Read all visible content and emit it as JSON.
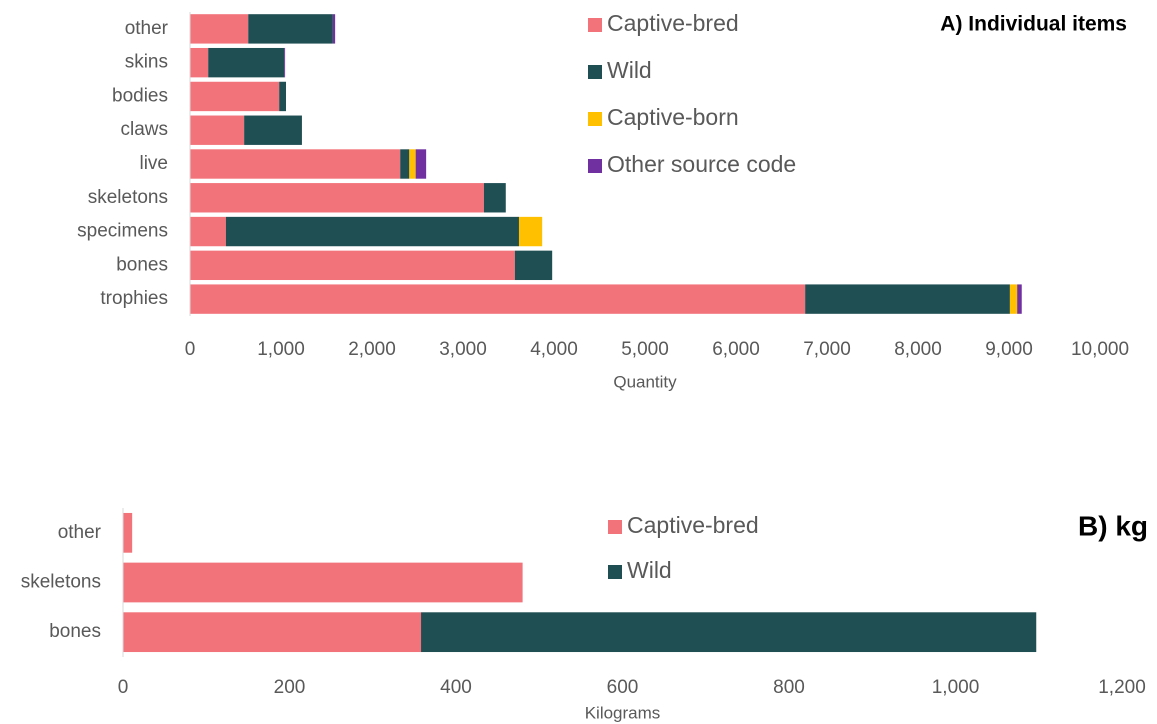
{
  "chart_data": [
    {
      "type": "bar",
      "orientation": "horizontal",
      "stacked": true,
      "title": "A) Individual items",
      "xlabel": "Quantity",
      "categories": [
        "other",
        "skins",
        "bodies",
        "claws",
        "live",
        "skeletons",
        "specimens",
        "bones",
        "trophies"
      ],
      "series": [
        {
          "name": "Captive-bred",
          "color": "#f2737a",
          "values": [
            640,
            200,
            980,
            595,
            2310,
            3230,
            395,
            3570,
            6760
          ]
        },
        {
          "name": "Wild",
          "color": "#1f4e53",
          "values": [
            930,
            835,
            75,
            635,
            100,
            240,
            3220,
            410,
            2250
          ]
        },
        {
          "name": "Captive-born",
          "color": "#ffc000",
          "values": [
            0,
            0,
            0,
            0,
            70,
            0,
            255,
            0,
            80
          ]
        },
        {
          "name": "Other source code",
          "color": "#7030a0",
          "values": [
            25,
            10,
            0,
            0,
            115,
            0,
            0,
            0,
            50
          ]
        }
      ],
      "xlim": [
        0,
        10000
      ],
      "xticks": [
        0,
        {
          "value": 1000,
          "label": "1,000"
        },
        {
          "value": 2000,
          "label": "2,000"
        },
        {
          "value": 3000,
          "label": "3,000"
        },
        {
          "value": 4000,
          "label": "4,000"
        },
        {
          "value": 5000,
          "label": "5,000"
        },
        {
          "value": 6000,
          "label": "6,000"
        },
        {
          "value": 7000,
          "label": "7,000"
        },
        {
          "value": 8000,
          "label": "8,000"
        },
        {
          "value": 9000,
          "label": "9,000"
        },
        {
          "value": 10000,
          "label": "10,000"
        }
      ],
      "grid": false
    },
    {
      "type": "bar",
      "orientation": "horizontal",
      "stacked": true,
      "title": "B) kg",
      "xlabel": "Kilograms",
      "categories": [
        "other",
        "skeletons",
        "bones"
      ],
      "series": [
        {
          "name": "Captive-bred",
          "color": "#f2737a",
          "values": [
            11,
            480,
            358
          ]
        },
        {
          "name": "Wild",
          "color": "#1f4e53",
          "values": [
            0,
            0,
            739
          ]
        }
      ],
      "xlim": [
        0,
        1200
      ],
      "xticks": [
        0,
        200,
        400,
        600,
        800,
        {
          "value": 1000,
          "label": "1,000"
        },
        {
          "value": 1200,
          "label": "1,200"
        }
      ],
      "grid": false
    }
  ]
}
